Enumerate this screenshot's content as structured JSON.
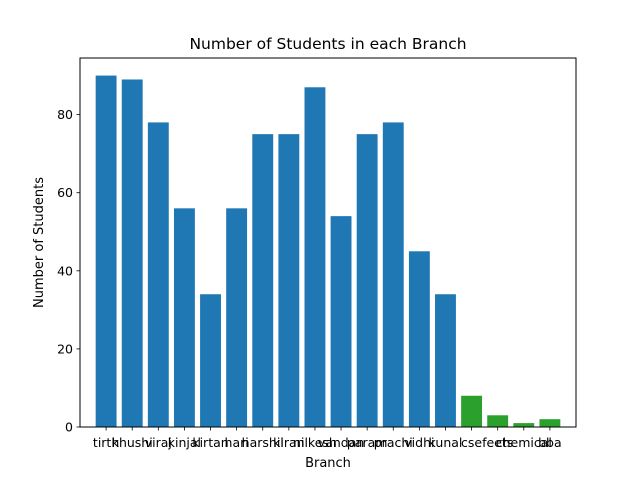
{
  "chart_data": {
    "type": "bar",
    "title": "Number of Students in each Branch",
    "xlabel": "Branch",
    "ylabel": "Number of Students",
    "ylim": [
      0,
      94.5
    ],
    "yticks": [
      0,
      20,
      40,
      60,
      80
    ],
    "grid": false,
    "categories": [
      "tirth",
      "khushi",
      "viraj",
      "kinjal",
      "kirtan",
      "hari",
      "harshil",
      "kiran",
      "nilkesh",
      "vandan",
      "param",
      "prachi",
      "vidhi",
      "kunal",
      "cse",
      "feets",
      "chemical",
      "bba"
    ],
    "values": [
      90,
      89,
      78,
      56,
      34,
      56,
      75,
      75,
      87,
      54,
      75,
      78,
      45,
      34,
      8,
      3,
      1,
      2
    ],
    "colors": [
      "#1f77b4",
      "#1f77b4",
      "#1f77b4",
      "#1f77b4",
      "#1f77b4",
      "#1f77b4",
      "#1f77b4",
      "#1f77b4",
      "#1f77b4",
      "#1f77b4",
      "#1f77b4",
      "#1f77b4",
      "#1f77b4",
      "#1f77b4",
      "#2ca02c",
      "#2ca02c",
      "#2ca02c",
      "#2ca02c"
    ]
  }
}
